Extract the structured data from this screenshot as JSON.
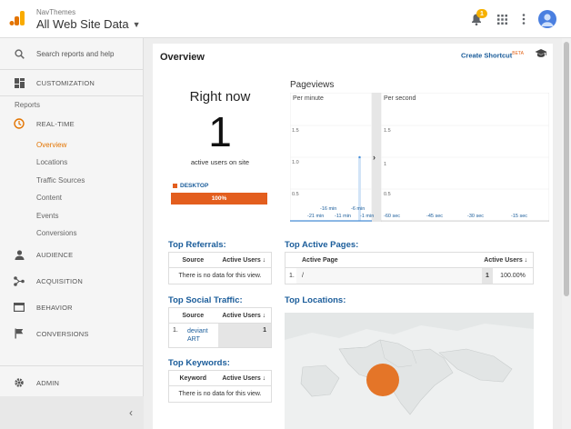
{
  "header": {
    "brand": "NavThemes",
    "property": "All Web Site Data",
    "notification_count": "1",
    "icons": [
      "analytics-logo-icon",
      "caret-down-icon",
      "bell-icon",
      "apps-grid-icon",
      "more-vert-icon",
      "account-avatar-icon"
    ]
  },
  "sidebar": {
    "search_placeholder": "Search reports and help",
    "customization": "CUSTOMIZATION",
    "reports_heading": "Reports",
    "realtime": "REAL-TIME",
    "realtime_items": [
      "Overview",
      "Locations",
      "Traffic Sources",
      "Content",
      "Events",
      "Conversions"
    ],
    "audience": "AUDIENCE",
    "acquisition": "ACQUISITION",
    "behavior": "BEHAVIOR",
    "conversions": "CONVERSIONS",
    "admin": "ADMIN",
    "collapse": "‹"
  },
  "overview": {
    "title": "Overview",
    "create_shortcut": "Create Shortcut",
    "beta": "BETA",
    "right_now_title": "Right now",
    "active_count": "1",
    "active_label": "active users on site",
    "device_label": "DESKTOP",
    "device_percent": "100%",
    "device_share": 1.0
  },
  "pageviews": {
    "title": "Pageviews",
    "per_minute": "Per minute",
    "per_second": "Per second",
    "y_ticks": [
      "1.5",
      "1.0",
      "0.5"
    ],
    "y_ticks_right": [
      "1.5",
      "1",
      "0.5"
    ],
    "minute_ticks_top": [
      "-16 min",
      "-6 min"
    ],
    "minute_ticks_bottom": [
      "-21 min",
      "-11 min",
      "-1 min"
    ],
    "second_ticks": [
      "-60 sec",
      "-45 sec",
      "-30 sec",
      "-15 sec"
    ]
  },
  "top_referrals": {
    "title": "Top Referrals:",
    "columns": [
      "Source",
      "Active Users"
    ],
    "empty": "There is no data for this view."
  },
  "top_active_pages": {
    "title": "Top Active Pages:",
    "columns": [
      "Active Page",
      "Active Users"
    ],
    "rows": [
      {
        "rank": "1.",
        "page": "/",
        "users": "1",
        "percent": "100.00%"
      }
    ]
  },
  "top_social": {
    "title": "Top Social Traffic:",
    "columns": [
      "Source",
      "Active Users"
    ],
    "rows": [
      {
        "rank": "1.",
        "source": "deviant ART",
        "users": "1"
      }
    ]
  },
  "top_locations": {
    "title": "Top Locations:"
  },
  "top_keywords": {
    "title": "Top Keywords:",
    "columns": [
      "Keyword",
      "Active Users"
    ],
    "empty": "There is no data for this view."
  },
  "colors": {
    "accent": "#e35e1e",
    "link": "#1a5c9a",
    "realtime_active": "#e37400",
    "chart_blue": "#4a90d9"
  }
}
